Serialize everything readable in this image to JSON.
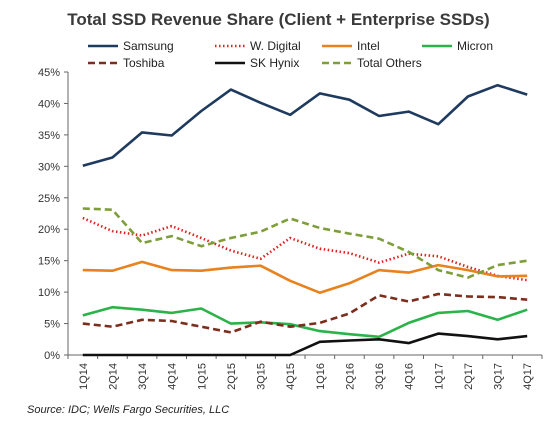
{
  "chart_data": {
    "type": "line",
    "title": "Total SSD Revenue Share (Client + Enterprise SSDs)",
    "source": "Source: IDC; Wells Fargo Securities, LLC",
    "xlabel": "",
    "ylabel": "",
    "ylim": [
      0,
      45
    ],
    "yticks": [
      "0%",
      "5%",
      "10%",
      "15%",
      "20%",
      "25%",
      "30%",
      "35%",
      "40%",
      "45%"
    ],
    "grid": false,
    "legend_position": "top",
    "categories": [
      "1Q14",
      "2Q14",
      "3Q14",
      "4Q14",
      "1Q15",
      "2Q15",
      "3Q15",
      "4Q15",
      "1Q16",
      "2Q16",
      "3Q16",
      "4Q16",
      "1Q17",
      "2Q17",
      "3Q17",
      "4Q17"
    ],
    "series": [
      {
        "name": "Samsung",
        "color": "#1f3a5f",
        "style": "solid",
        "values": [
          30.1,
          31.4,
          35.4,
          34.9,
          38.8,
          42.2,
          40.1,
          38.2,
          41.6,
          40.6,
          38.0,
          38.7,
          36.7,
          41.1,
          42.9,
          41.4
        ]
      },
      {
        "name": "W. Digital",
        "color": "#e02020",
        "style": "dotted",
        "values": [
          21.8,
          19.7,
          19.0,
          20.5,
          18.6,
          16.6,
          15.3,
          18.6,
          16.9,
          16.2,
          14.7,
          16.1,
          15.7,
          14.0,
          12.6,
          11.9
        ]
      },
      {
        "name": "Intel",
        "color": "#e8821e",
        "style": "solid",
        "values": [
          13.5,
          13.4,
          14.8,
          13.5,
          13.4,
          13.9,
          14.2,
          11.8,
          9.9,
          11.4,
          13.5,
          13.1,
          14.3,
          13.5,
          12.5,
          12.6
        ]
      },
      {
        "name": "Micron",
        "color": "#2bb34a",
        "style": "solid",
        "values": [
          6.3,
          7.6,
          7.2,
          6.7,
          7.4,
          5.0,
          5.2,
          4.9,
          3.8,
          3.3,
          2.9,
          5.1,
          6.7,
          7.0,
          5.6,
          7.2
        ]
      },
      {
        "name": "Toshiba",
        "color": "#7b2e1e",
        "style": "dashed",
        "values": [
          5.0,
          4.5,
          5.6,
          5.4,
          4.5,
          3.6,
          5.3,
          4.5,
          5.1,
          6.6,
          9.5,
          8.5,
          9.7,
          9.3,
          9.2,
          8.8
        ]
      },
      {
        "name": "SK Hynix",
        "color": "#111111",
        "style": "solid",
        "values": [
          0,
          0,
          0,
          0,
          0,
          0,
          0,
          0,
          2.1,
          2.3,
          2.5,
          1.9,
          3.4,
          3.0,
          2.5,
          3.0
        ]
      },
      {
        "name": "Total Others",
        "color": "#7e9e3a",
        "style": "dashed",
        "values": [
          23.3,
          23.1,
          17.8,
          18.9,
          17.3,
          18.6,
          19.6,
          21.7,
          20.2,
          19.3,
          18.5,
          16.4,
          13.5,
          12.3,
          14.3,
          15.0
        ]
      }
    ]
  }
}
